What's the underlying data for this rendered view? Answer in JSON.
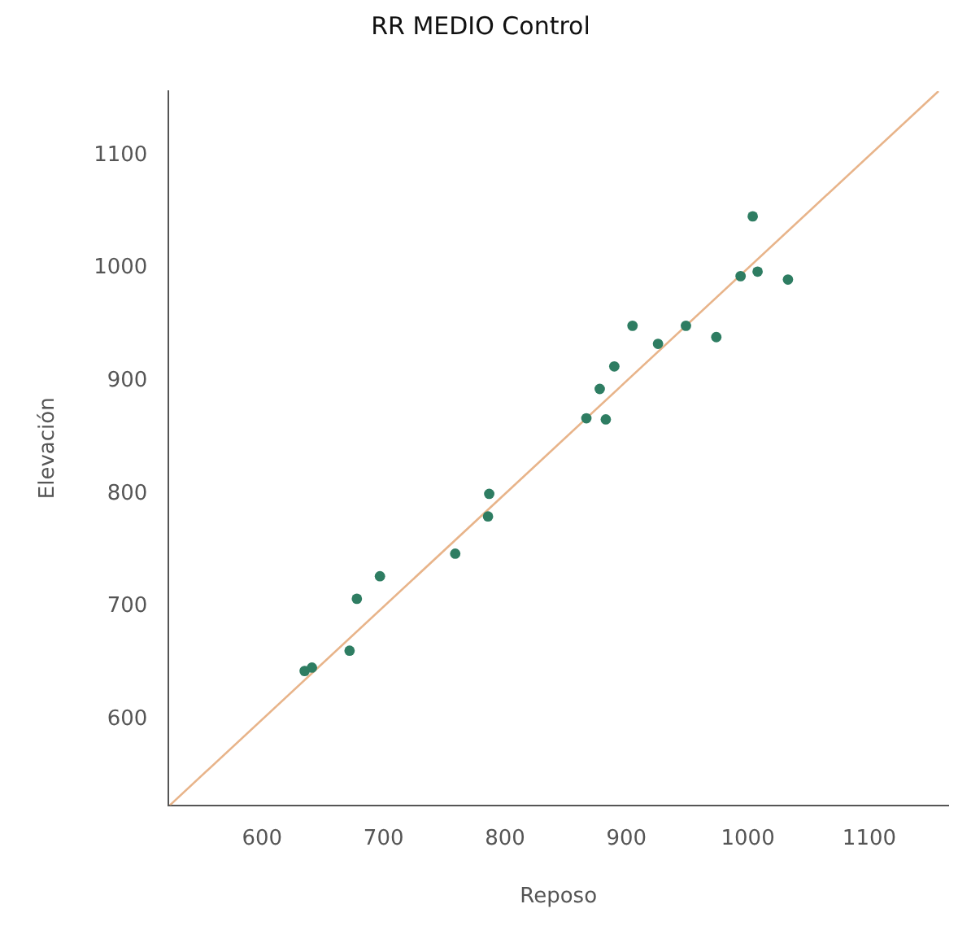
{
  "chart_data": {
    "type": "scatter",
    "title": "RR MEDIO Control",
    "xlabel": "Reposo",
    "ylabel": "Elevación",
    "xlim": [
      523,
      1165
    ],
    "ylim": [
      524,
      1157
    ],
    "xticks": [
      600,
      700,
      800,
      900,
      1000,
      1100
    ],
    "yticks": [
      600,
      700,
      800,
      900,
      1000,
      1100
    ],
    "grid": false,
    "legend": false,
    "marker": "circle",
    "series": [
      {
        "type": "scatter",
        "color": "#2e7d62",
        "x": [
          635,
          641,
          672,
          678,
          697,
          759,
          786,
          787,
          867,
          878,
          883,
          890,
          905,
          926,
          949,
          974,
          994,
          1004,
          1008,
          1033
        ],
        "values": [
          643,
          646,
          661,
          707,
          727,
          747,
          780,
          800,
          867,
          893,
          866,
          913,
          949,
          933,
          949,
          939,
          993,
          1046,
          997,
          990
        ]
      },
      {
        "type": "line",
        "color": "#e8b48a",
        "line_style": "solid",
        "marker": "none",
        "x": [
          524,
          1157
        ],
        "values": [
          524,
          1157
        ]
      }
    ]
  }
}
